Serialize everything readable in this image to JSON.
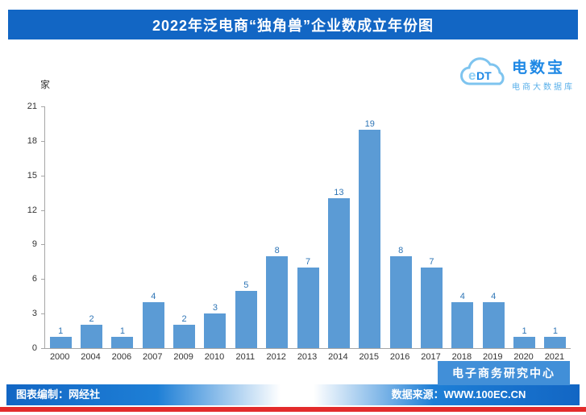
{
  "title": "2022年泛电商“独角兽”企业数成立年份图",
  "logo": {
    "edt": "eDT",
    "name": "电数宝",
    "subtitle": "电商大数据库"
  },
  "chart_data": {
    "type": "bar",
    "title": "2022年泛电商“独角兽”企业数成立年份图",
    "unit_label": "家",
    "categories": [
      "2000",
      "2004",
      "2006",
      "2007",
      "2009",
      "2010",
      "2011",
      "2012",
      "2013",
      "2014",
      "2015",
      "2016",
      "2017",
      "2018",
      "2019",
      "2020",
      "2021"
    ],
    "values": [
      1,
      2,
      1,
      4,
      2,
      3,
      5,
      8,
      7,
      13,
      19,
      8,
      7,
      4,
      4,
      1,
      1
    ],
    "xlabel": "",
    "ylabel": "家",
    "ylim": [
      0,
      21
    ],
    "yticks": [
      0,
      3,
      6,
      9,
      12,
      15,
      18,
      21
    ],
    "grid": false,
    "legend": false,
    "bar_color": "#5b9bd5",
    "value_label_color": "#2e75b6"
  },
  "footer": {
    "left": "图表编制：网经社",
    "right": "数据来源：WWW.100EC.CN",
    "watermark": "电子商务研究中心"
  },
  "colors": {
    "banner_blue": "#1266c4",
    "bar_blue": "#5b9bd5",
    "watermark_blue": "#418fd8",
    "red_strip": "#e32b2b"
  }
}
